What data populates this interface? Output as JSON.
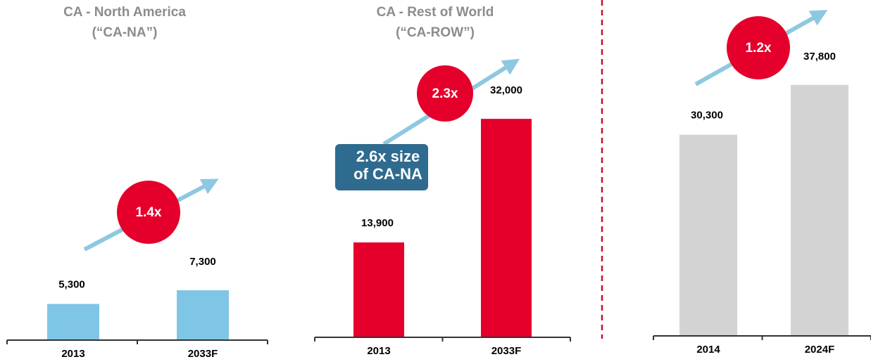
{
  "chart_data": [
    {
      "type": "bar",
      "title": "CA - North America",
      "subtitle": "(“CA-NA”)",
      "categories": [
        "2013",
        "2033F"
      ],
      "values": [
        5300,
        7300
      ],
      "value_labels": [
        "5,300",
        "7,300"
      ],
      "color": "#7fc6e6",
      "ylim": [
        0,
        35000
      ],
      "annotations": [
        "1.4x"
      ]
    },
    {
      "type": "bar",
      "title": "CA - Rest of World",
      "subtitle": "(“CA-ROW”)",
      "categories": [
        "2013",
        "2033F"
      ],
      "values": [
        13900,
        32000
      ],
      "value_labels": [
        "13,900",
        "32,000"
      ],
      "color": "#e4002b",
      "ylim": [
        0,
        35000
      ],
      "annotations": [
        "2.3x"
      ],
      "callout_lines": [
        "2.6x size",
        "of CA-NA"
      ]
    },
    {
      "type": "bar",
      "categories": [
        "2014",
        "2024F"
      ],
      "values": [
        30300,
        37800
      ],
      "value_labels": [
        "30,300",
        "37,800"
      ],
      "color": "#d3d3d3",
      "ylim": [
        0,
        40000
      ],
      "annotations": [
        "1.2x"
      ]
    }
  ]
}
